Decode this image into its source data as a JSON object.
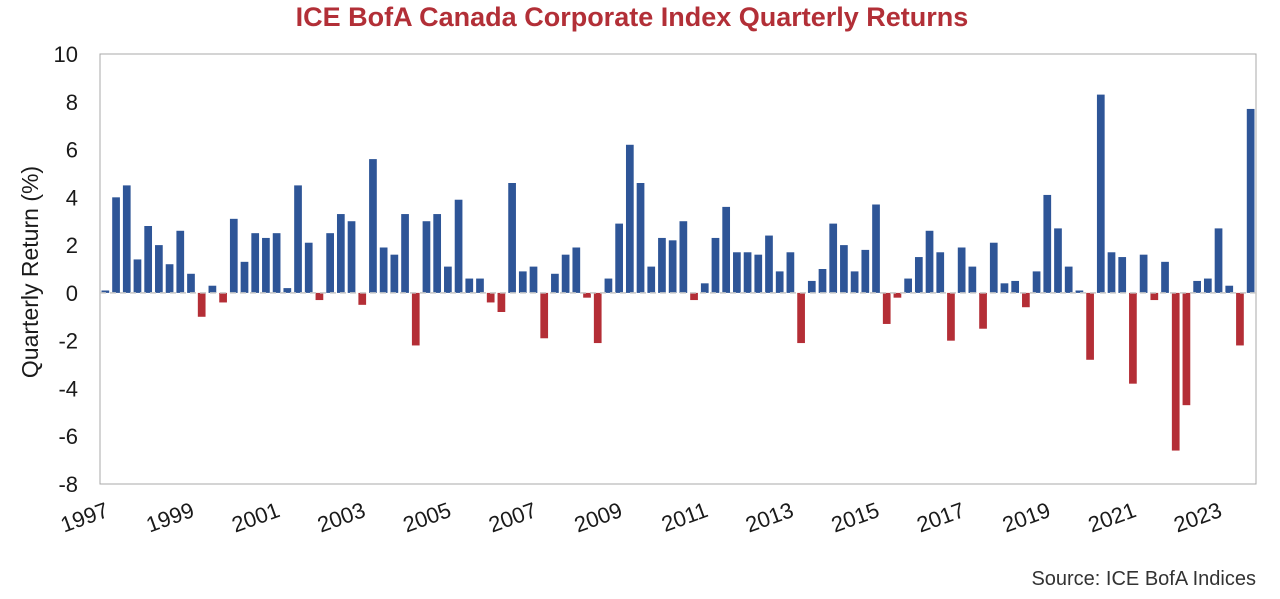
{
  "title": "ICE BofA Canada Corporate Index Quarterly Returns",
  "source": "Source: ICE BofA Indices",
  "colors": {
    "positive": "#2e5597",
    "negative": "#b42e36",
    "title": "#b22f37",
    "zero_line": "#c8c8c8"
  },
  "chart_data": {
    "type": "bar",
    "title": "ICE BofA Canada Corporate Index Quarterly Returns",
    "xlabel": "",
    "ylabel": "Quarterly Return (%)",
    "ylim": [
      -8,
      10
    ],
    "yticks": [
      10,
      8,
      6,
      4,
      2,
      0,
      -2,
      -4,
      -6,
      -8
    ],
    "ytick_labels": [
      "10",
      "8",
      "6",
      "4",
      "2",
      "0",
      "-2",
      "-4",
      "-6",
      "-8"
    ],
    "xticks": [
      "1997",
      "1999",
      "2001",
      "2003",
      "2005",
      "2007",
      "2009",
      "2011",
      "2013",
      "2015",
      "2017",
      "2019",
      "2021",
      "2023"
    ],
    "start_period": "1997 Q1",
    "frequency": "quarterly",
    "grid": false,
    "values": [
      0.1,
      4.0,
      4.5,
      1.4,
      2.8,
      2.0,
      1.2,
      2.6,
      0.8,
      -1.0,
      0.3,
      -0.4,
      3.1,
      1.3,
      2.5,
      2.3,
      2.5,
      0.2,
      4.5,
      2.1,
      -0.3,
      2.5,
      3.3,
      3.0,
      -0.5,
      5.6,
      1.9,
      1.6,
      3.3,
      -2.2,
      3.0,
      3.3,
      1.1,
      3.9,
      0.6,
      0.6,
      -0.4,
      -0.8,
      4.6,
      0.9,
      1.1,
      -1.9,
      0.8,
      1.6,
      1.9,
      -0.2,
      -2.1,
      0.6,
      2.9,
      6.2,
      4.6,
      1.1,
      2.3,
      2.2,
      3.0,
      -0.3,
      0.4,
      2.3,
      3.6,
      1.7,
      1.7,
      1.6,
      2.4,
      0.9,
      1.7,
      -2.1,
      0.5,
      1.0,
      2.9,
      2.0,
      0.9,
      1.8,
      3.7,
      -1.3,
      -0.2,
      0.6,
      1.5,
      2.6,
      1.7,
      -2.0,
      1.9,
      1.1,
      -1.5,
      2.1,
      0.4,
      0.5,
      -0.6,
      0.9,
      4.1,
      2.7,
      1.1,
      0.1,
      -2.8,
      8.3,
      1.7,
      1.5,
      -3.8,
      1.6,
      -0.3,
      1.3,
      -6.6,
      -4.7,
      0.5,
      0.6,
      2.7,
      0.3,
      -2.2,
      7.7
    ]
  }
}
